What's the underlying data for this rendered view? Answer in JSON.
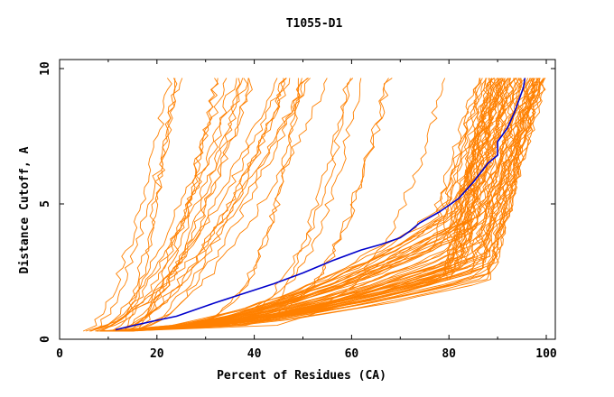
{
  "chart_data": {
    "type": "line",
    "title": "T1055-D1",
    "xlabel": "Percent of Residues (CA)",
    "ylabel": "Distance Cutoff, A",
    "xlim": [
      0,
      100
    ],
    "ylim": [
      0,
      10
    ],
    "x_ticks": [
      "0",
      "20",
      "40",
      "60",
      "80",
      "100"
    ],
    "y_ticks": [
      "0",
      "5",
      "10"
    ],
    "grid": false,
    "colors": {
      "highlight": "#0000cc",
      "others": "#ff8000"
    },
    "highlight": {
      "x": [
        11.5,
        15,
        20,
        24,
        28,
        32,
        38,
        44,
        50,
        56,
        62,
        66,
        70,
        72,
        74,
        78,
        82,
        85,
        88,
        90,
        90,
        92,
        93.5,
        94.5,
        95.3,
        95.6
      ],
      "y": [
        0.35,
        0.5,
        0.7,
        0.85,
        1.1,
        1.35,
        1.7,
        2.05,
        2.45,
        2.9,
        3.3,
        3.5,
        3.75,
        4.0,
        4.3,
        4.7,
        5.2,
        5.8,
        6.5,
        6.8,
        7.3,
        7.8,
        8.4,
        8.9,
        9.3,
        9.65
      ]
    },
    "bundles": {
      "steep": {
        "count": 22,
        "x_start_range": [
          5,
          16
        ],
        "x_end_range": [
          22,
          58
        ],
        "curvature": 0.6
      },
      "middle": {
        "count": 8,
        "x_start_range": [
          9,
          14
        ],
        "x_end_range": [
          48,
          82
        ],
        "curvature": 0.2
      },
      "right_upper": {
        "count": 30,
        "x_start_range": [
          9,
          13
        ],
        "x_end_range": [
          86,
          100
        ],
        "knee": 4.0
      },
      "right_lower": {
        "count": 38,
        "x_start_range": [
          8,
          14
        ],
        "x_end_range": [
          88,
          100
        ],
        "knee": 2.6
      }
    }
  }
}
